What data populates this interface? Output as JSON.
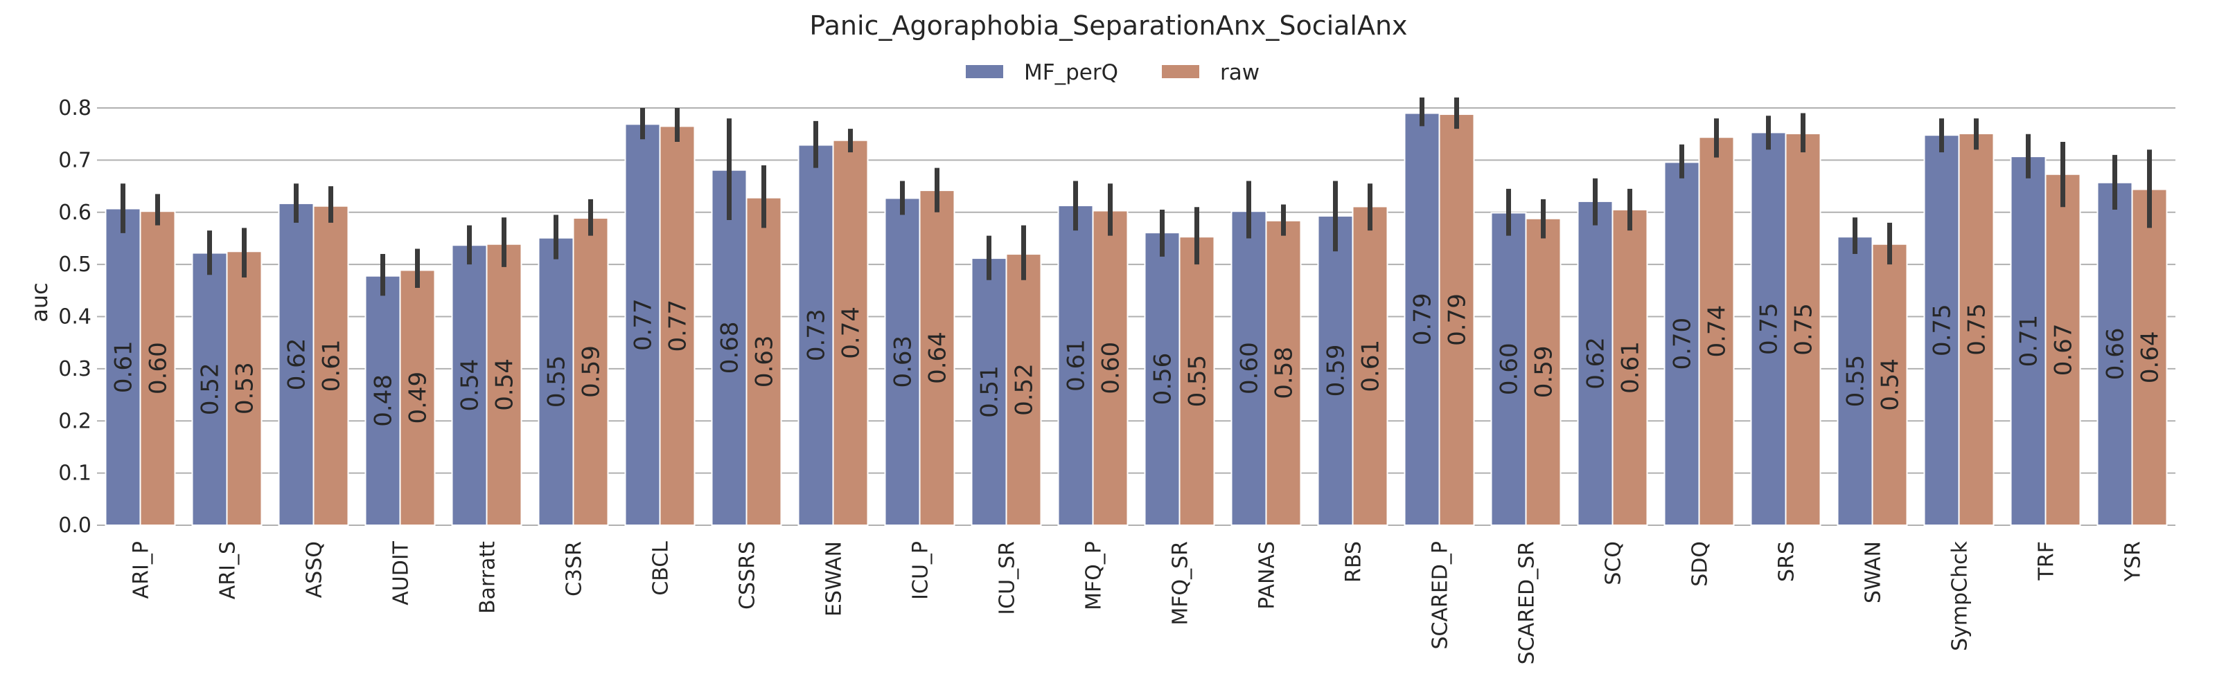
{
  "chart_data": {
    "type": "bar",
    "title": "Panic_Agoraphobia_SeparationAnx_SocialAnx",
    "xlabel": "",
    "ylabel": "auc",
    "ylim": [
      0,
      0.8
    ],
    "yticks": [
      "0.0",
      "0.1",
      "0.2",
      "0.3",
      "0.4",
      "0.5",
      "0.6",
      "0.7",
      "0.8"
    ],
    "grid": true,
    "legend_position": "top-center",
    "categories": [
      "ARI_P",
      "ARI_S",
      "ASSQ",
      "AUDIT",
      "Barratt",
      "C3SR",
      "CBCL",
      "CSSRS",
      "ESWAN",
      "ICU_P",
      "ICU_SR",
      "MFQ_P",
      "MFQ_SR",
      "PANAS",
      "RBS",
      "SCARED_P",
      "SCARED_SR",
      "SCQ",
      "SDQ",
      "SRS",
      "SWAN",
      "SympChck",
      "TRF",
      "YSR"
    ],
    "series": [
      {
        "name": "MF_perQ",
        "color": "#6e7cab",
        "values": [
          0.607,
          0.522,
          0.617,
          0.478,
          0.537,
          0.551,
          0.769,
          0.681,
          0.729,
          0.627,
          0.512,
          0.613,
          0.561,
          0.602,
          0.593,
          0.79,
          0.599,
          0.621,
          0.696,
          0.753,
          0.553,
          0.748,
          0.707,
          0.657
        ],
        "labels": [
          "0.61",
          "0.52",
          "0.62",
          "0.48",
          "0.54",
          "0.55",
          "0.77",
          "0.68",
          "0.73",
          "0.63",
          "0.51",
          "0.61",
          "0.56",
          "0.60",
          "0.59",
          "0.79",
          "0.60",
          "0.62",
          "0.70",
          "0.75",
          "0.55",
          "0.75",
          "0.71",
          "0.66"
        ],
        "ci": [
          [
            0.56,
            0.655
          ],
          [
            0.48,
            0.565
          ],
          [
            0.58,
            0.655
          ],
          [
            0.44,
            0.52
          ],
          [
            0.5,
            0.575
          ],
          [
            0.51,
            0.595
          ],
          [
            0.74,
            0.8
          ],
          [
            0.585,
            0.78
          ],
          [
            0.685,
            0.775
          ],
          [
            0.595,
            0.66
          ],
          [
            0.47,
            0.555
          ],
          [
            0.565,
            0.66
          ],
          [
            0.515,
            0.605
          ],
          [
            0.55,
            0.66
          ],
          [
            0.525,
            0.66
          ],
          [
            0.765,
            0.82
          ],
          [
            0.555,
            0.645
          ],
          [
            0.575,
            0.665
          ],
          [
            0.665,
            0.73
          ],
          [
            0.72,
            0.785
          ],
          [
            0.52,
            0.59
          ],
          [
            0.715,
            0.78
          ],
          [
            0.665,
            0.75
          ],
          [
            0.605,
            0.71
          ]
        ]
      },
      {
        "name": "raw",
        "color": "#c58c72",
        "values": [
          0.602,
          0.525,
          0.612,
          0.489,
          0.539,
          0.589,
          0.765,
          0.628,
          0.738,
          0.642,
          0.52,
          0.603,
          0.553,
          0.584,
          0.611,
          0.788,
          0.588,
          0.605,
          0.744,
          0.751,
          0.539,
          0.751,
          0.673,
          0.644
        ],
        "labels": [
          "0.60",
          "0.53",
          "0.61",
          "0.49",
          "0.54",
          "0.59",
          "0.77",
          "0.63",
          "0.74",
          "0.64",
          "0.52",
          "0.60",
          "0.55",
          "0.58",
          "0.61",
          "0.79",
          "0.59",
          "0.61",
          "0.74",
          "0.75",
          "0.54",
          "0.75",
          "0.67",
          "0.64"
        ],
        "ci": [
          [
            0.575,
            0.635
          ],
          [
            0.475,
            0.57
          ],
          [
            0.58,
            0.65
          ],
          [
            0.455,
            0.53
          ],
          [
            0.495,
            0.59
          ],
          [
            0.555,
            0.625
          ],
          [
            0.735,
            0.8
          ],
          [
            0.57,
            0.69
          ],
          [
            0.715,
            0.76
          ],
          [
            0.6,
            0.685
          ],
          [
            0.47,
            0.575
          ],
          [
            0.555,
            0.655
          ],
          [
            0.5,
            0.61
          ],
          [
            0.555,
            0.615
          ],
          [
            0.565,
            0.655
          ],
          [
            0.76,
            0.82
          ],
          [
            0.55,
            0.625
          ],
          [
            0.565,
            0.645
          ],
          [
            0.705,
            0.78
          ],
          [
            0.715,
            0.79
          ],
          [
            0.5,
            0.58
          ],
          [
            0.72,
            0.78
          ],
          [
            0.61,
            0.735
          ],
          [
            0.57,
            0.72
          ]
        ]
      }
    ]
  }
}
